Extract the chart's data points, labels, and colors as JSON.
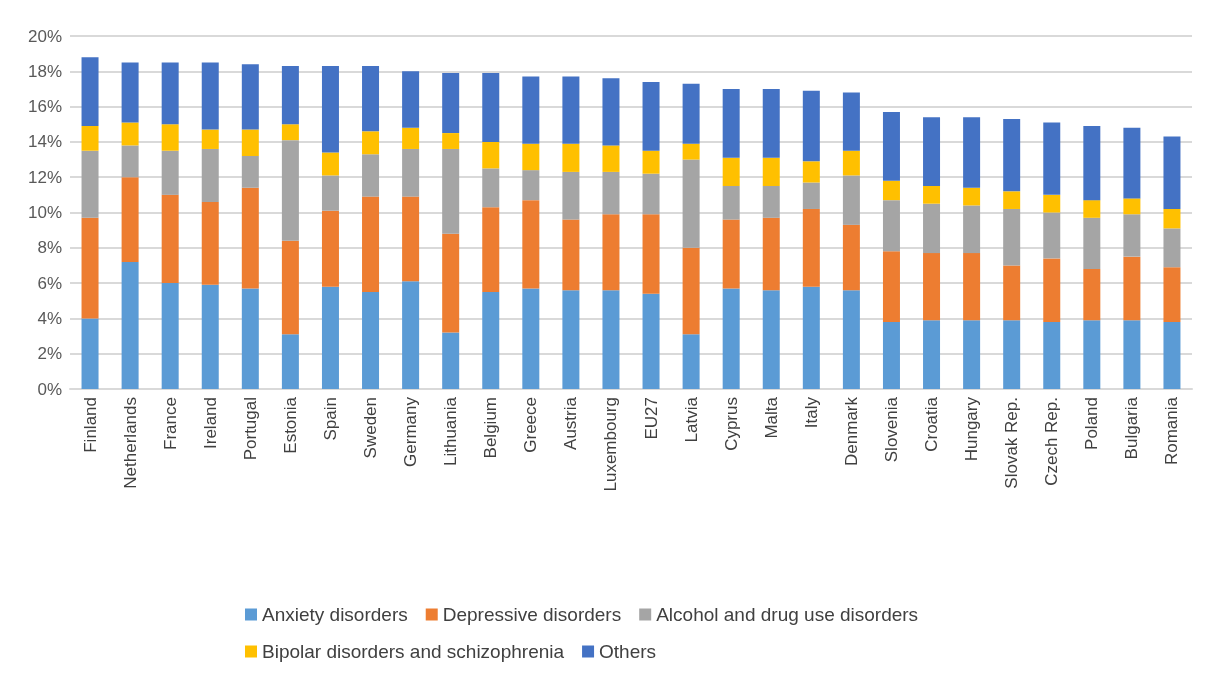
{
  "chart_data": {
    "type": "bar",
    "stacked": true,
    "grid": "y",
    "legend": "bottom",
    "categories": [
      "Finland",
      "Netherlands",
      "France",
      "Ireland",
      "Portugal",
      "Estonia",
      "Spain",
      "Sweden",
      "Germany",
      "Lithuania",
      "Belgium",
      "Greece",
      "Austria",
      "Luxembourg",
      "EU27",
      "Latvia",
      "Cyprus",
      "Malta",
      "Italy",
      "Denmark",
      "Slovenia",
      "Croatia",
      "Hungary",
      "Slovak Rep.",
      "Czech Rep.",
      "Poland",
      "Bulgaria",
      "Romania"
    ],
    "ylim": [
      0,
      20
    ],
    "yticks": [
      {
        "value": 0,
        "label": "0%"
      },
      {
        "value": 2,
        "label": "2%"
      },
      {
        "value": 4,
        "label": "4%"
      },
      {
        "value": 6,
        "label": "6%"
      },
      {
        "value": 8,
        "label": "8%"
      },
      {
        "value": 10,
        "label": "10%"
      },
      {
        "value": 12,
        "label": "12%"
      },
      {
        "value": 14,
        "label": "14%"
      },
      {
        "value": 16,
        "label": "16%"
      },
      {
        "value": 18,
        "label": "18%"
      },
      {
        "value": 20,
        "label": "20%"
      }
    ],
    "series": [
      {
        "name": "Anxiety disorders",
        "color": "#5b9bd5",
        "values": [
          4.0,
          7.2,
          6.0,
          5.9,
          5.7,
          3.1,
          5.8,
          5.5,
          6.1,
          3.2,
          5.5,
          5.7,
          5.6,
          5.6,
          5.4,
          3.1,
          5.7,
          5.6,
          5.8,
          5.6,
          3.8,
          3.9,
          3.9,
          3.9,
          3.8,
          3.9,
          3.9,
          3.8
        ]
      },
      {
        "name": "Depressive disorders",
        "color": "#ed7d31",
        "values": [
          5.7,
          4.8,
          5.0,
          4.7,
          5.7,
          5.3,
          4.3,
          5.4,
          4.8,
          5.6,
          4.8,
          5.0,
          4.0,
          4.3,
          4.5,
          4.9,
          3.9,
          4.1,
          4.4,
          3.7,
          4.0,
          3.8,
          3.8,
          3.1,
          3.6,
          2.9,
          3.6,
          3.1
        ]
      },
      {
        "name": "Alcohol and drug use disorders",
        "color": "#a5a5a5",
        "values": [
          3.8,
          1.8,
          2.5,
          3.0,
          1.8,
          5.7,
          2.0,
          2.4,
          2.7,
          4.8,
          2.2,
          1.7,
          2.7,
          2.4,
          2.3,
          5.0,
          1.9,
          1.8,
          1.5,
          2.8,
          2.9,
          2.8,
          2.7,
          3.2,
          2.6,
          2.9,
          2.4,
          2.2
        ]
      },
      {
        "name": "Bipolar disorders and schizophrenia",
        "color": "#ffc000",
        "values": [
          1.4,
          1.3,
          1.5,
          1.1,
          1.5,
          0.9,
          1.3,
          1.3,
          1.2,
          0.9,
          1.5,
          1.5,
          1.6,
          1.5,
          1.3,
          0.9,
          1.6,
          1.6,
          1.2,
          1.4,
          1.1,
          1.0,
          1.0,
          1.0,
          1.0,
          1.0,
          0.9,
          1.1
        ]
      },
      {
        "name": "Others",
        "color": "#4472c4",
        "values": [
          3.9,
          3.4,
          3.5,
          3.8,
          3.7,
          3.3,
          4.9,
          3.7,
          3.2,
          3.4,
          3.9,
          3.8,
          3.8,
          3.8,
          3.9,
          3.4,
          3.9,
          3.9,
          4.0,
          3.3,
          3.9,
          3.9,
          4.0,
          4.1,
          4.1,
          4.2,
          4.0,
          4.1
        ]
      }
    ]
  }
}
